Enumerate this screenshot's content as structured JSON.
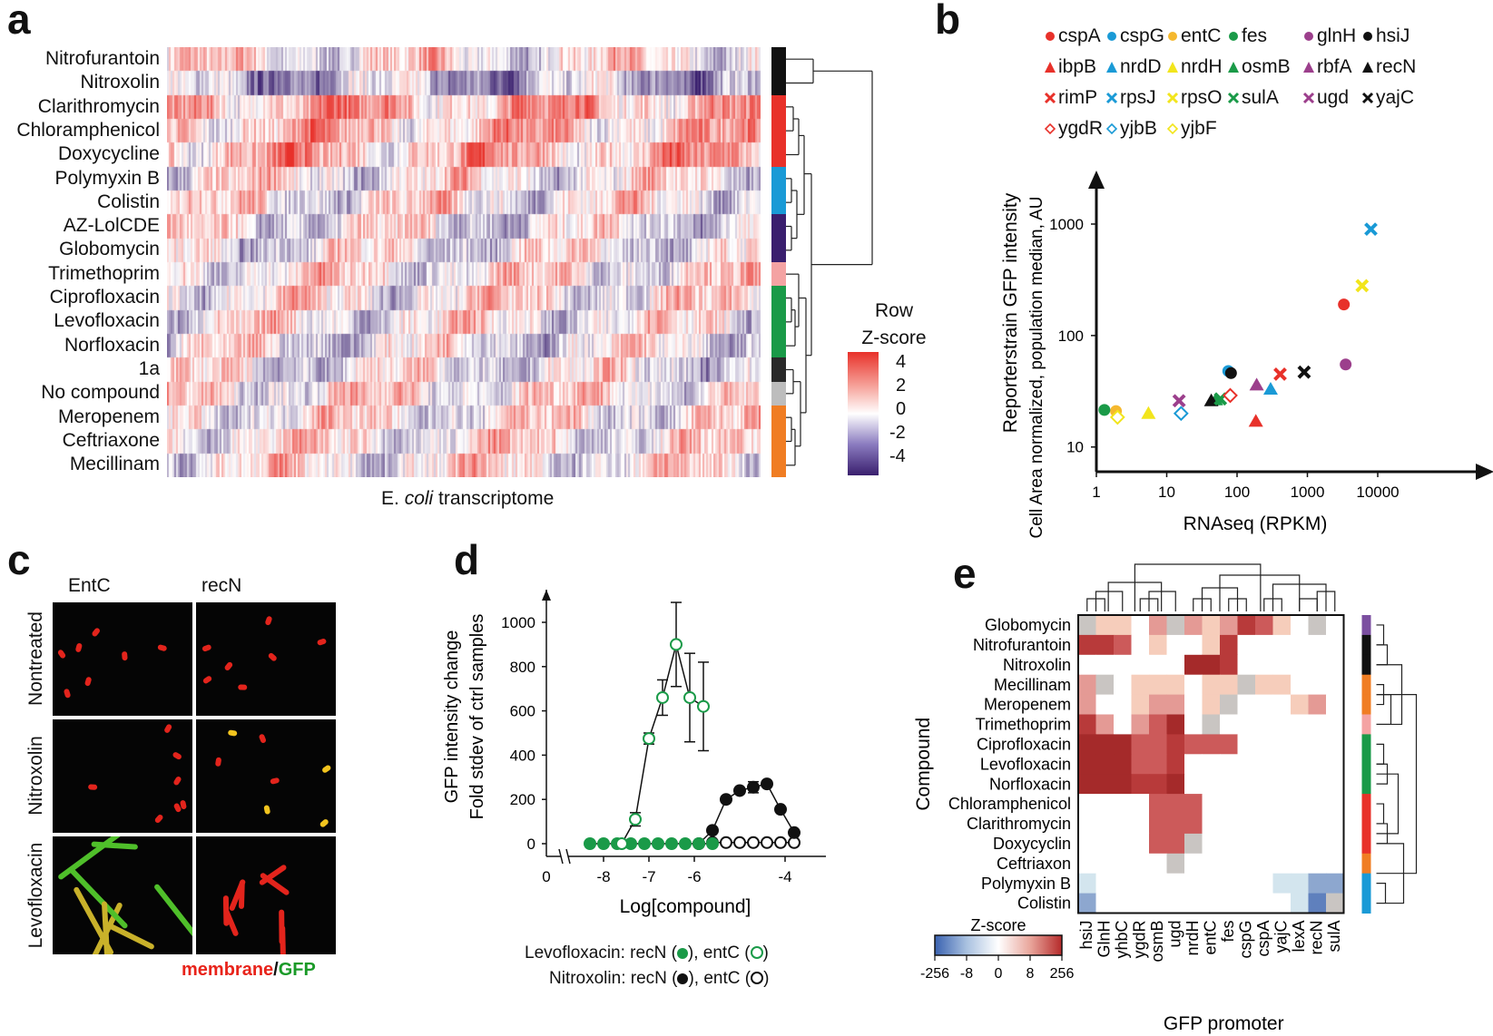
{
  "panel_letters": [
    "a",
    "b",
    "c",
    "d",
    "e"
  ],
  "panel_a": {
    "rows": [
      "Nitrofurantoin",
      "Nitroxolin",
      "Clarithromycin",
      "Chloramphenicol",
      "Doxycycline",
      "Polymyxin B",
      "Colistin",
      "AZ-LolCDE",
      "Globomycin",
      "Trimethoprim",
      "Ciprofloxacin",
      "Levofloxacin",
      "Norfloxacin",
      "1a",
      "No compound",
      "Meropenem",
      "Ceftriaxone",
      "Mecillinam"
    ],
    "xlabel_pre": "E. ",
    "xlabel_italic": "coli",
    "xlabel_post": " transcriptome",
    "legend_title_1": "Row",
    "legend_title_2": "Z-score",
    "legend_ticks": [
      "4",
      "2",
      "0",
      "-2",
      "-4"
    ],
    "cluster_colors": [
      "#111111",
      "#111111",
      "#e8312a",
      "#e8312a",
      "#e8312a",
      "#1a9ad6",
      "#1a9ad6",
      "#3a1f6e",
      "#3a1f6e",
      "#f4a3a3",
      "#1a9a48",
      "#1a9a48",
      "#1a9a48",
      "#2a2a2a",
      "#bdbdbd",
      "#f07d23",
      "#f07d23",
      "#f07d23"
    ]
  },
  "panel_b": {
    "chart_data": {
      "type": "scatter",
      "xlabel": "RNAseq (RPKM)",
      "ylabel_line1": "Reporterstrain GFP intensity",
      "ylabel_line2": "Cell Area normalized, population median, AU",
      "x_scale": "log",
      "y_scale": "log",
      "xlim": [
        1,
        10000
      ],
      "ylim": [
        6,
        2000
      ],
      "x_ticks": [
        "1",
        "10",
        "100",
        "1000",
        "10000"
      ],
      "y_ticks": [
        "10",
        "100",
        "1000"
      ],
      "series": [
        {
          "name": "cspA",
          "marker": "circle",
          "color": "#e8312a",
          "x": 3300,
          "y": 190
        },
        {
          "name": "cspG",
          "marker": "circle",
          "color": "#1a9ad6",
          "x": 75,
          "y": 48
        },
        {
          "name": "entC",
          "marker": "circle",
          "color": "#f5b82e",
          "x": 1.9,
          "y": 21
        },
        {
          "name": "fes",
          "marker": "circle",
          "color": "#1a9a48",
          "x": 1.3,
          "y": 21.5
        },
        {
          "name": "glnH",
          "marker": "circle",
          "color": "#9c3f8c",
          "x": 3500,
          "y": 55
        },
        {
          "name": "hsiJ",
          "marker": "circle",
          "color": "#111111",
          "x": 82,
          "y": 46
        },
        {
          "name": "ibpB",
          "marker": "triangle",
          "color": "#e8312a",
          "x": 185,
          "y": 17
        },
        {
          "name": "nrdD",
          "marker": "triangle",
          "color": "#1a9ad6",
          "x": 300,
          "y": 33
        },
        {
          "name": "nrdH",
          "marker": "triangle",
          "color": "#f2e51c",
          "x": 5.5,
          "y": 20
        },
        {
          "name": "osmB",
          "marker": "triangle",
          "color": "#1a9a48",
          "x": 50,
          "y": 26.5
        },
        {
          "name": "rbfA",
          "marker": "triangle",
          "color": "#9c3f8c",
          "x": 190,
          "y": 36
        },
        {
          "name": "recN",
          "marker": "triangle",
          "color": "#111111",
          "x": 43,
          "y": 26
        },
        {
          "name": "rimP",
          "marker": "x",
          "color": "#e8312a",
          "x": 410,
          "y": 45
        },
        {
          "name": "rpsJ",
          "marker": "x",
          "color": "#1a9ad6",
          "x": 8000,
          "y": 900
        },
        {
          "name": "rpsO",
          "marker": "x",
          "color": "#f2e51c",
          "x": 6000,
          "y": 280
        },
        {
          "name": "sulA",
          "marker": "x",
          "color": "#1a9a48",
          "x": 58,
          "y": 27
        },
        {
          "name": "ugd",
          "marker": "x",
          "color": "#9c3f8c",
          "x": 15,
          "y": 26
        },
        {
          "name": "yajC",
          "marker": "x",
          "color": "#111111",
          "x": 900,
          "y": 47
        },
        {
          "name": "ygdR",
          "marker": "diamond",
          "color": "#e8312a",
          "x": 80,
          "y": 29
        },
        {
          "name": "yjbB",
          "marker": "diamond",
          "color": "#1a9ad6",
          "x": 16,
          "y": 20
        },
        {
          "name": "yjbF",
          "marker": "diamond",
          "color": "#f2e51c",
          "x": 2,
          "y": 18.5
        }
      ]
    }
  },
  "panel_c": {
    "col_labels": [
      "EntC",
      "recN"
    ],
    "row_labels": [
      "Nontreated",
      "Nitroxolin",
      "Levofloxacin"
    ],
    "caption_membrane": "membrane",
    "caption_slash": "/",
    "caption_gfp": "GFP"
  },
  "panel_d": {
    "chart_data": {
      "type": "line",
      "xlabel": "Log[compound]",
      "ylabel_line1": "GFP intensity change",
      "ylabel_line2": "Fold stdev of ctrl samples",
      "x_ticks": [
        "-8",
        "-7",
        "-6",
        "-4"
      ],
      "x_tick_zero": "0",
      "y_ticks": [
        "0",
        "200",
        "400",
        "600",
        "800",
        "1000"
      ],
      "ylim": [
        0,
        1200
      ],
      "xlim": [
        -8.5,
        -3.5
      ],
      "series": [
        {
          "name": "Levofloxacin: recN",
          "style": "filled",
          "color": "#1a9a48",
          "x": [
            -8.3,
            -8.0,
            -7.7,
            -7.4,
            -7.1,
            -6.8,
            -6.5,
            -6.2,
            -5.9,
            -5.6
          ],
          "y": [
            0,
            0,
            0,
            0,
            0,
            0,
            0,
            0,
            0,
            0
          ]
        },
        {
          "name": "Levofloxacin: entC",
          "style": "open",
          "color": "#1a9a48",
          "x": [
            -7.6,
            -7.3,
            -7.0,
            -6.7,
            -6.4,
            -6.1,
            -5.8
          ],
          "y": [
            0,
            110,
            475,
            660,
            900,
            660,
            620
          ],
          "err": [
            0,
            30,
            25,
            80,
            190,
            200,
            200
          ]
        },
        {
          "name": "Nitroxolin: recN",
          "style": "filled",
          "color": "#111111",
          "x": [
            -5.9,
            -5.6,
            -5.3,
            -5.0,
            -4.7,
            -4.4,
            -4.1,
            -3.8
          ],
          "y": [
            0,
            60,
            200,
            240,
            255,
            270,
            155,
            50
          ],
          "err": [
            0,
            0,
            0,
            0,
            25,
            0,
            0,
            0
          ]
        },
        {
          "name": "Nitroxolin: entC",
          "style": "open",
          "color": "#111111",
          "x": [
            -5.6,
            -5.3,
            -5.0,
            -4.7,
            -4.4,
            -4.1,
            -3.8
          ],
          "y": [
            5,
            5,
            5,
            5,
            5,
            5,
            5
          ]
        }
      ]
    },
    "legend_1_label": "Levofloxacin: recN (",
    "legend_1_mid": "), entC (",
    "legend_1_end": ")",
    "legend_2_label": "Nitroxolin: recN (",
    "legend_2_mid": "), entC (",
    "legend_2_end": ")"
  },
  "panel_e": {
    "chart_data": {
      "type": "heatmap",
      "xlabel": "GFP promoter",
      "ylabel": "Compound",
      "rows": [
        "Globomycin",
        "Nitrofurantoin",
        "Nitroxolin",
        "Mecillinam",
        "Meropenem",
        "Trimethoprim",
        "Ciprofloxacin",
        "Levofloxacin",
        "Norfloxacin",
        "Chloramphenicol",
        "Clarithromycin",
        "Doxycyclin",
        "Ceftriaxon",
        "Polymyxin B",
        "Colistin"
      ],
      "cols": [
        "hsiJ",
        "GlnH",
        "yhbC",
        "ygdR",
        "osmB",
        "ugd",
        "nrdH",
        "entC",
        "fes",
        "cspG",
        "cspA",
        "yajC",
        "lexA",
        "recN",
        "sulA"
      ],
      "values": [
        [
          -1,
          3,
          3,
          0,
          4,
          -1,
          4,
          3,
          4,
          6,
          5,
          3,
          0,
          -1,
          0
        ],
        [
          6,
          6,
          5,
          0,
          3,
          0,
          0,
          3,
          6,
          0,
          0,
          0,
          0,
          0,
          0
        ],
        [
          0,
          0,
          0,
          0,
          0,
          0,
          7,
          7,
          6,
          0,
          0,
          0,
          0,
          0,
          0
        ],
        [
          4,
          -1,
          0,
          3,
          3,
          3,
          0,
          3,
          3,
          -1,
          3,
          3,
          0,
          0,
          0
        ],
        [
          4,
          0,
          0,
          3,
          4,
          4,
          0,
          3,
          -1,
          0,
          0,
          0,
          3,
          4,
          0
        ],
        [
          6,
          4,
          0,
          4,
          5,
          7,
          0,
          -1,
          0,
          0,
          0,
          0,
          0,
          0,
          0
        ],
        [
          7,
          7,
          7,
          5,
          5,
          6,
          5,
          5,
          5,
          0,
          0,
          0,
          0,
          0,
          0
        ],
        [
          7,
          7,
          7,
          5,
          5,
          6,
          0,
          0,
          0,
          0,
          0,
          0,
          0,
          0,
          0
        ],
        [
          7,
          7,
          7,
          6,
          6,
          7,
          0,
          0,
          0,
          0,
          0,
          0,
          0,
          0,
          0
        ],
        [
          0,
          0,
          0,
          0,
          5,
          5,
          5,
          0,
          0,
          0,
          0,
          0,
          0,
          0,
          0
        ],
        [
          0,
          0,
          0,
          0,
          5,
          5,
          5,
          0,
          0,
          0,
          0,
          0,
          0,
          0,
          0
        ],
        [
          0,
          0,
          0,
          0,
          5,
          5,
          -1,
          0,
          0,
          0,
          0,
          0,
          0,
          0,
          0
        ],
        [
          0,
          0,
          0,
          0,
          0,
          -1,
          0,
          0,
          0,
          0,
          0,
          0,
          0,
          0,
          0
        ],
        [
          -2,
          0,
          0,
          0,
          0,
          0,
          0,
          0,
          0,
          0,
          0,
          -2,
          -2,
          -4,
          -4
        ],
        [
          -4,
          0,
          0,
          0,
          0,
          0,
          0,
          0,
          0,
          0,
          0,
          0,
          -2,
          -6,
          -1
        ]
      ],
      "colorbar_title": "Z-score",
      "colorbar_ticks": [
        "-256",
        "-8",
        "0",
        "8",
        "256"
      ],
      "cluster_colors": [
        "#7b4fa0",
        "#111111",
        "#111111",
        "#f07d23",
        "#f07d23",
        "#f4a3a3",
        "#1a9a48",
        "#1a9a48",
        "#1a9a48",
        "#e8312a",
        "#e8312a",
        "#e8312a",
        "#f07d23",
        "#1a9ad6",
        "#1a9ad6"
      ]
    }
  }
}
